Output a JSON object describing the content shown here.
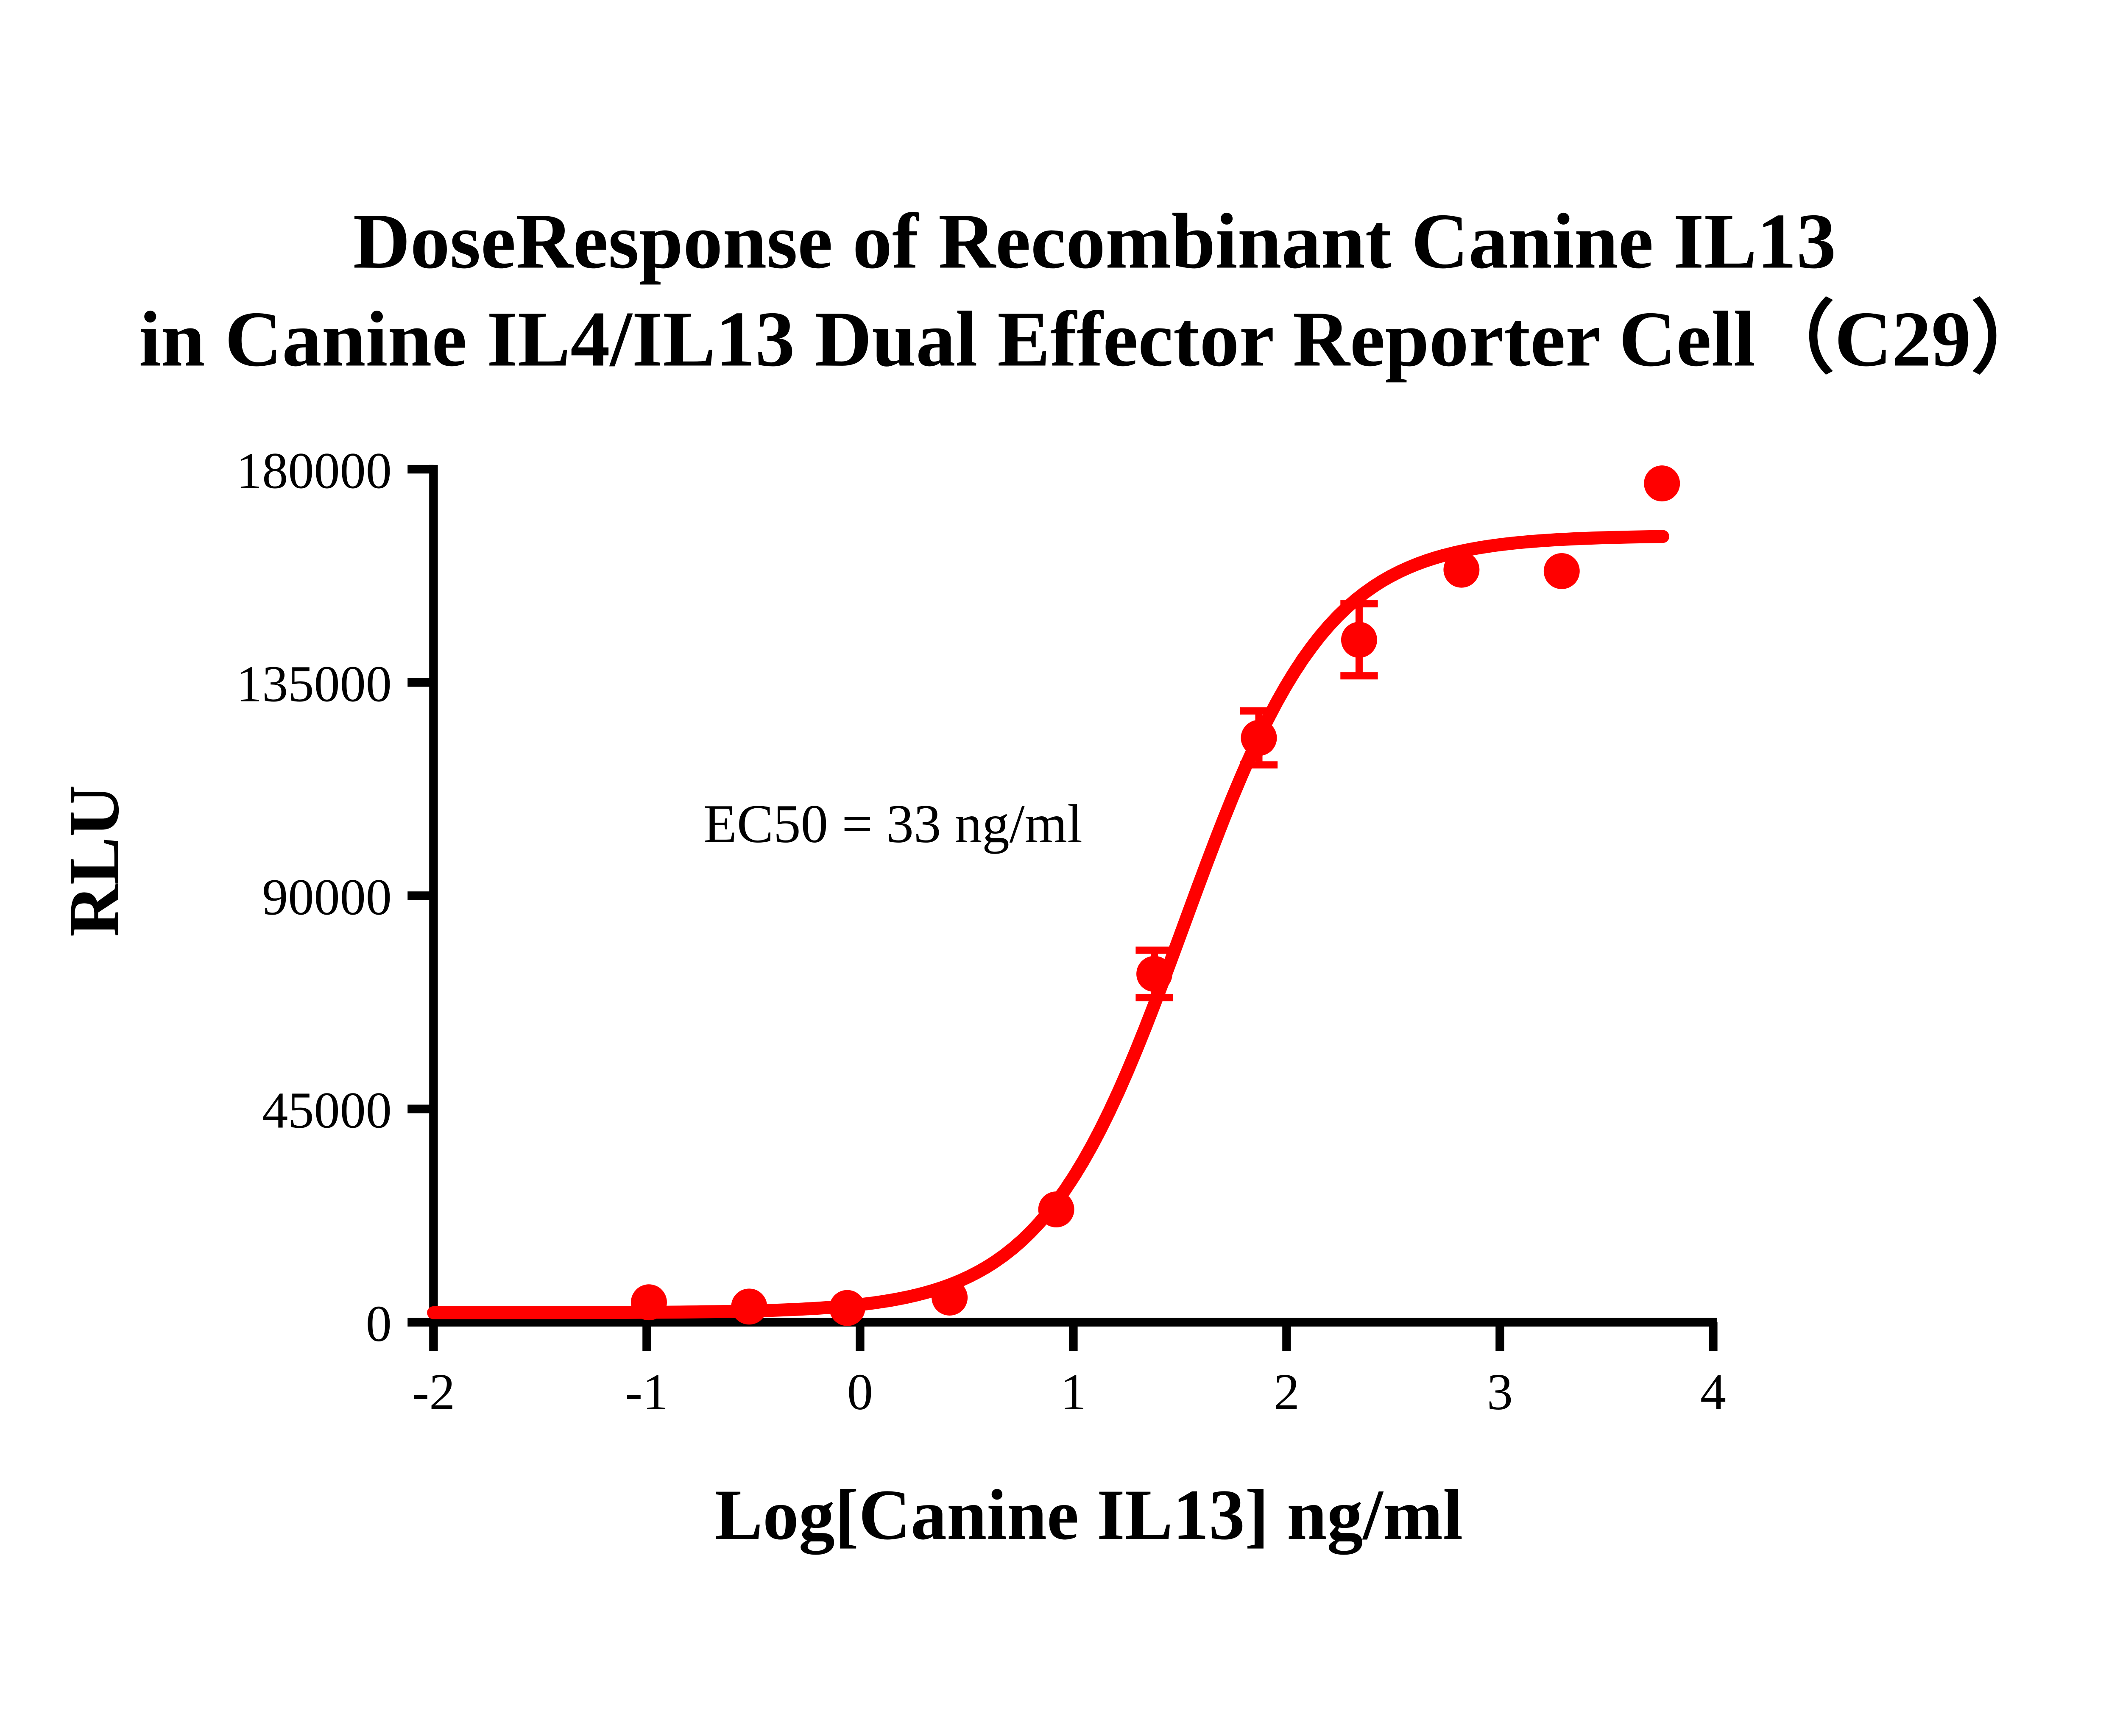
{
  "title": {
    "line1": "DoseResponse of Recombinant Canine IL13",
    "line2": "in Canine IL4/IL13 Dual Effector Reporter Cell（C29）"
  },
  "annotation": {
    "ec50_text": "EC50 = 33 ng/ml"
  },
  "colors": {
    "curve": "#FF0000",
    "marker": "#FF0000",
    "axis": "#000000",
    "text": "#000000",
    "background": "#FFFFFF"
  },
  "chart_data": {
    "type": "scatter",
    "title": "DoseResponse of Recombinant Canine IL13 in Canine IL4/IL13 Dual Effector Reporter Cell（C29）",
    "xlabel": "Log[Canine IL13] ng/ml",
    "ylabel": "RLU",
    "xlim": [
      -2,
      4
    ],
    "ylim": [
      0,
      180000
    ],
    "grid": false,
    "legend": "none",
    "x_ticks": [
      -2,
      -1,
      0,
      1,
      2,
      3,
      4
    ],
    "x_tick_labels": [
      "-2",
      "-1",
      "0",
      "1",
      "2",
      "3",
      "4"
    ],
    "y_ticks": [
      0,
      45000,
      90000,
      135000,
      180000
    ],
    "y_tick_labels": [
      "0",
      "45000",
      "90000",
      "135000",
      "180000"
    ],
    "ec50_ng_ml": 33,
    "series": [
      {
        "name": "Canine IL13",
        "color": "#FF0000",
        "points": [
          {
            "x": -0.99,
            "y": 4200
          },
          {
            "x": -0.52,
            "y": 3300
          },
          {
            "x": -0.06,
            "y": 3000
          },
          {
            "x": 0.42,
            "y": 5200
          },
          {
            "x": 0.92,
            "y": 23800
          },
          {
            "x": 1.38,
            "y": 73500,
            "yerr": 5000
          },
          {
            "x": 1.87,
            "y": 123300,
            "yerr": 5700
          },
          {
            "x": 2.34,
            "y": 144000,
            "yerr": 7600
          },
          {
            "x": 2.82,
            "y": 158800
          },
          {
            "x": 3.29,
            "y": 158500
          },
          {
            "x": 3.76,
            "y": 177000
          }
        ]
      }
    ],
    "fit_curve": {
      "model": "4PL",
      "bottom": 2000,
      "top": 166000,
      "log_ec50": 1.52,
      "hill": 1.3,
      "x_start": -2,
      "x_end": 3.764
    }
  }
}
